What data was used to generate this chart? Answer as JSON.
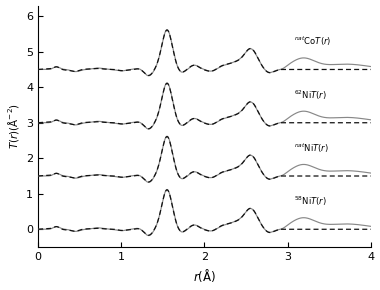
{
  "title": "",
  "xlabel": "$r$(Å)",
  "ylabel": "$T(r)$(Å$^{-2}$)",
  "xlim": [
    0,
    4
  ],
  "ylim": [
    -0.5,
    6.3
  ],
  "offsets": [
    0.0,
    1.5,
    3.0,
    4.5
  ],
  "labels": [
    "$^{58}$Ni$T(r)$",
    "$^{nat}$Ni$T(r)$",
    "$^{62}$Ni$T(r)$",
    "$^{nat}$Co$T(r)$"
  ],
  "yticks": [
    0,
    1,
    2,
    3,
    4,
    5,
    6
  ],
  "xticks": [
    0,
    1,
    2,
    3,
    4
  ],
  "solid_color": "#888888",
  "dashed_color": "#111111",
  "background_color": "#ffffff",
  "dashed_cutoff": 2.88
}
